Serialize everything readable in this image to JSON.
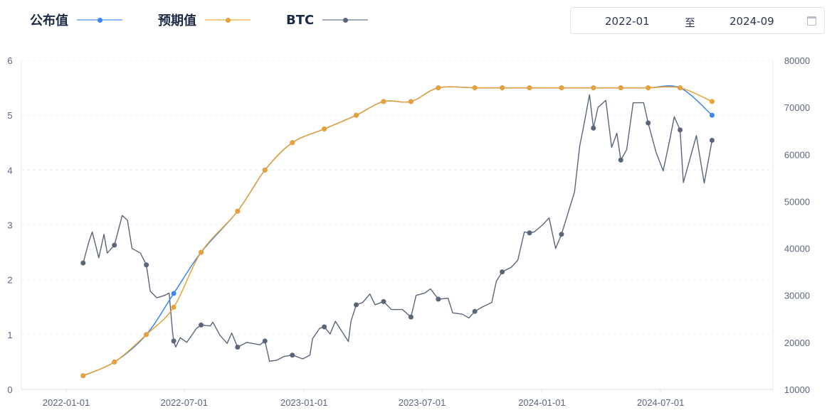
{
  "legend": [
    {
      "label": "公布值",
      "color": "#3b86f0"
    },
    {
      "label": "预期值",
      "color": "#e8a136"
    },
    {
      "label": "BTC",
      "color": "#5b6579"
    }
  ],
  "date_range": {
    "start": "2022-01",
    "separator": "至",
    "end": "2024-09",
    "icon": "calendar-icon"
  },
  "chart_data": {
    "type": "line",
    "x_ticks": [
      "2022-01-01",
      "2022-07-01",
      "2023-01-01",
      "2023-07-01",
      "2024-01-01",
      "2024-07-01"
    ],
    "y_left": {
      "ticks": [
        "0",
        "1",
        "2",
        "3",
        "4",
        "5",
        "6"
      ],
      "range": [
        0,
        6
      ]
    },
    "y_right": {
      "ticks": [
        "10000",
        "20000",
        "30000",
        "40000",
        "50000",
        "60000",
        "70000",
        "80000"
      ],
      "range": [
        10000,
        80000
      ]
    },
    "grid": true,
    "legend_position": "top-left",
    "meeting_dates": [
      "2022-01-27",
      "2022-03-16",
      "2022-05-04",
      "2022-06-15",
      "2022-07-27",
      "2022-09-21",
      "2022-11-02",
      "2022-12-14",
      "2023-02-01",
      "2023-03-22",
      "2023-05-03",
      "2023-06-14",
      "2023-07-26",
      "2023-09-20",
      "2023-11-01",
      "2023-12-13",
      "2024-01-31",
      "2024-03-20",
      "2024-05-01",
      "2024-06-12",
      "2024-07-31",
      "2024-09-18"
    ],
    "series": [
      {
        "name": "公布值",
        "axis": "left",
        "values": [
          0.25,
          0.5,
          1.0,
          1.75,
          2.5,
          3.25,
          4.0,
          4.5,
          4.75,
          5.0,
          5.25,
          5.25,
          5.5,
          5.5,
          5.5,
          5.5,
          5.5,
          5.5,
          5.5,
          5.5,
          5.5,
          5.0
        ]
      },
      {
        "name": "预期值",
        "axis": "left",
        "values": [
          0.25,
          0.5,
          1.0,
          1.5,
          2.5,
          3.25,
          4.0,
          4.5,
          4.75,
          5.0,
          5.25,
          5.25,
          5.5,
          5.5,
          5.5,
          5.5,
          5.5,
          5.5,
          5.5,
          5.5,
          5.5,
          5.25
        ]
      },
      {
        "name": "BTC",
        "axis": "right",
        "points": [
          [
            "2022-01-27",
            36900
          ],
          [
            "2022-02-05",
            41500
          ],
          [
            "2022-02-10",
            43500
          ],
          [
            "2022-02-20",
            38000
          ],
          [
            "2022-02-28",
            43000
          ],
          [
            "2022-03-05",
            39000
          ],
          [
            "2022-03-16",
            40700
          ],
          [
            "2022-03-28",
            47000
          ],
          [
            "2022-04-05",
            46000
          ],
          [
            "2022-04-12",
            40000
          ],
          [
            "2022-04-25",
            39000
          ],
          [
            "2022-05-04",
            36500
          ],
          [
            "2022-05-10",
            30900
          ],
          [
            "2022-05-20",
            29500
          ],
          [
            "2022-06-01",
            30000
          ],
          [
            "2022-06-08",
            30500
          ],
          [
            "2022-06-13",
            22500
          ],
          [
            "2022-06-15",
            20300
          ],
          [
            "2022-06-18",
            19000
          ],
          [
            "2022-06-25",
            21000
          ],
          [
            "2022-07-05",
            20000
          ],
          [
            "2022-07-20",
            23000
          ],
          [
            "2022-07-27",
            23700
          ],
          [
            "2022-08-10",
            23500
          ],
          [
            "2022-08-14",
            24300
          ],
          [
            "2022-08-25",
            21500
          ],
          [
            "2022-09-05",
            19800
          ],
          [
            "2022-09-12",
            22000
          ],
          [
            "2022-09-21",
            19000
          ],
          [
            "2022-10-05",
            20000
          ],
          [
            "2022-10-25",
            19500
          ],
          [
            "2022-11-02",
            20300
          ],
          [
            "2022-11-09",
            16000
          ],
          [
            "2022-11-20",
            16200
          ],
          [
            "2022-12-01",
            17000
          ],
          [
            "2022-12-14",
            17300
          ],
          [
            "2022-12-30",
            16500
          ],
          [
            "2023-01-10",
            17300
          ],
          [
            "2023-01-14",
            20800
          ],
          [
            "2023-01-25",
            23000
          ],
          [
            "2023-02-01",
            23300
          ],
          [
            "2023-02-10",
            21800
          ],
          [
            "2023-02-18",
            24500
          ],
          [
            "2023-03-10",
            20200
          ],
          [
            "2023-03-14",
            24500
          ],
          [
            "2023-03-22",
            28000
          ],
          [
            "2023-04-01",
            28500
          ],
          [
            "2023-04-12",
            30300
          ],
          [
            "2023-04-20",
            28000
          ],
          [
            "2023-05-03",
            28700
          ],
          [
            "2023-05-15",
            27000
          ],
          [
            "2023-06-01",
            27000
          ],
          [
            "2023-06-14",
            25400
          ],
          [
            "2023-06-22",
            30000
          ],
          [
            "2023-07-05",
            30500
          ],
          [
            "2023-07-14",
            31400
          ],
          [
            "2023-07-26",
            29200
          ],
          [
            "2023-08-10",
            29400
          ],
          [
            "2023-08-17",
            26300
          ],
          [
            "2023-09-01",
            26000
          ],
          [
            "2023-09-11",
            25200
          ],
          [
            "2023-09-20",
            26600
          ],
          [
            "2023-10-01",
            27500
          ],
          [
            "2023-10-16",
            28500
          ],
          [
            "2023-10-23",
            33000
          ],
          [
            "2023-11-01",
            35000
          ],
          [
            "2023-11-15",
            36000
          ],
          [
            "2023-11-25",
            37500
          ],
          [
            "2023-12-05",
            43500
          ],
          [
            "2023-12-13",
            43300
          ],
          [
            "2023-12-20",
            43500
          ],
          [
            "2024-01-02",
            45000
          ],
          [
            "2024-01-12",
            46500
          ],
          [
            "2024-01-22",
            40000
          ],
          [
            "2024-01-31",
            43000
          ],
          [
            "2024-02-10",
            47500
          ],
          [
            "2024-02-20",
            52000
          ],
          [
            "2024-02-28",
            61800
          ],
          [
            "2024-03-05",
            66000
          ],
          [
            "2024-03-14",
            72700
          ],
          [
            "2024-03-20",
            65600
          ],
          [
            "2024-03-27",
            70000
          ],
          [
            "2024-04-08",
            71500
          ],
          [
            "2024-04-17",
            61500
          ],
          [
            "2024-04-25",
            64500
          ],
          [
            "2024-05-01",
            58800
          ],
          [
            "2024-05-10",
            61000
          ],
          [
            "2024-05-20",
            71000
          ],
          [
            "2024-06-05",
            71000
          ],
          [
            "2024-06-12",
            66700
          ],
          [
            "2024-06-24",
            60500
          ],
          [
            "2024-07-05",
            56500
          ],
          [
            "2024-07-15",
            63000
          ],
          [
            "2024-07-22",
            68000
          ],
          [
            "2024-07-31",
            65200
          ],
          [
            "2024-08-05",
            54000
          ],
          [
            "2024-08-15",
            59000
          ],
          [
            "2024-08-25",
            64000
          ],
          [
            "2024-09-06",
            53900
          ],
          [
            "2024-09-18",
            63000
          ]
        ]
      }
    ]
  }
}
